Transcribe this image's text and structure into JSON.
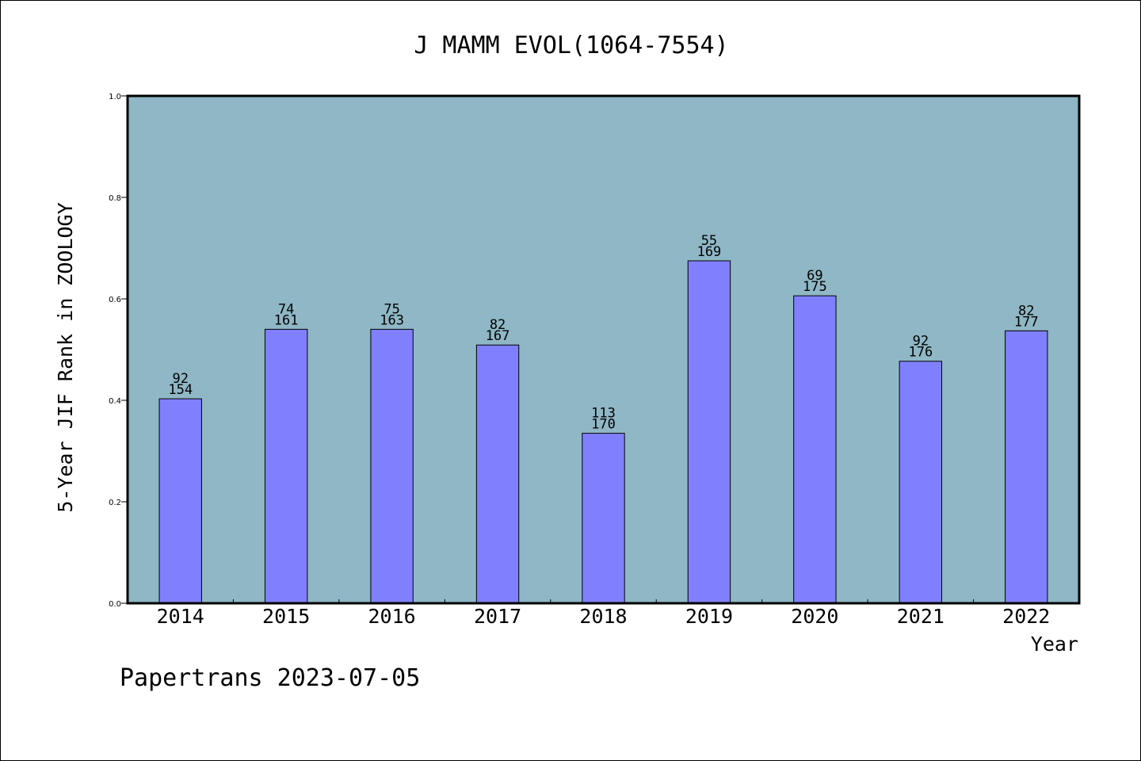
{
  "chart_data": {
    "type": "bar",
    "title": "J MAMM EVOL(1064-7554)",
    "xlabel": "Year",
    "ylabel": "5-Year JIF Rank in ZOOLOGY",
    "ylim": [
      0,
      1.0
    ],
    "yticks": [
      "0.0",
      "0.2",
      "0.4",
      "0.6",
      "0.8",
      "1.0"
    ],
    "grid": false,
    "categories": [
      "2014",
      "2015",
      "2016",
      "2017",
      "2018",
      "2019",
      "2020",
      "2021",
      "2022"
    ],
    "values": [
      0.403,
      0.54,
      0.54,
      0.509,
      0.335,
      0.675,
      0.606,
      0.477,
      0.537
    ],
    "rank": [
      "92",
      "74",
      "75",
      "82",
      "113",
      "55",
      "69",
      "92",
      "82"
    ],
    "total": [
      "154",
      "161",
      "163",
      "167",
      "170",
      "169",
      "175",
      "176",
      "177"
    ],
    "colors": {
      "plot_bg": "#8fb7c5",
      "bar": "#8080ff",
      "bar_edge": "#000000"
    }
  },
  "footer": {
    "text": "Papertrans 2023-07-05"
  }
}
